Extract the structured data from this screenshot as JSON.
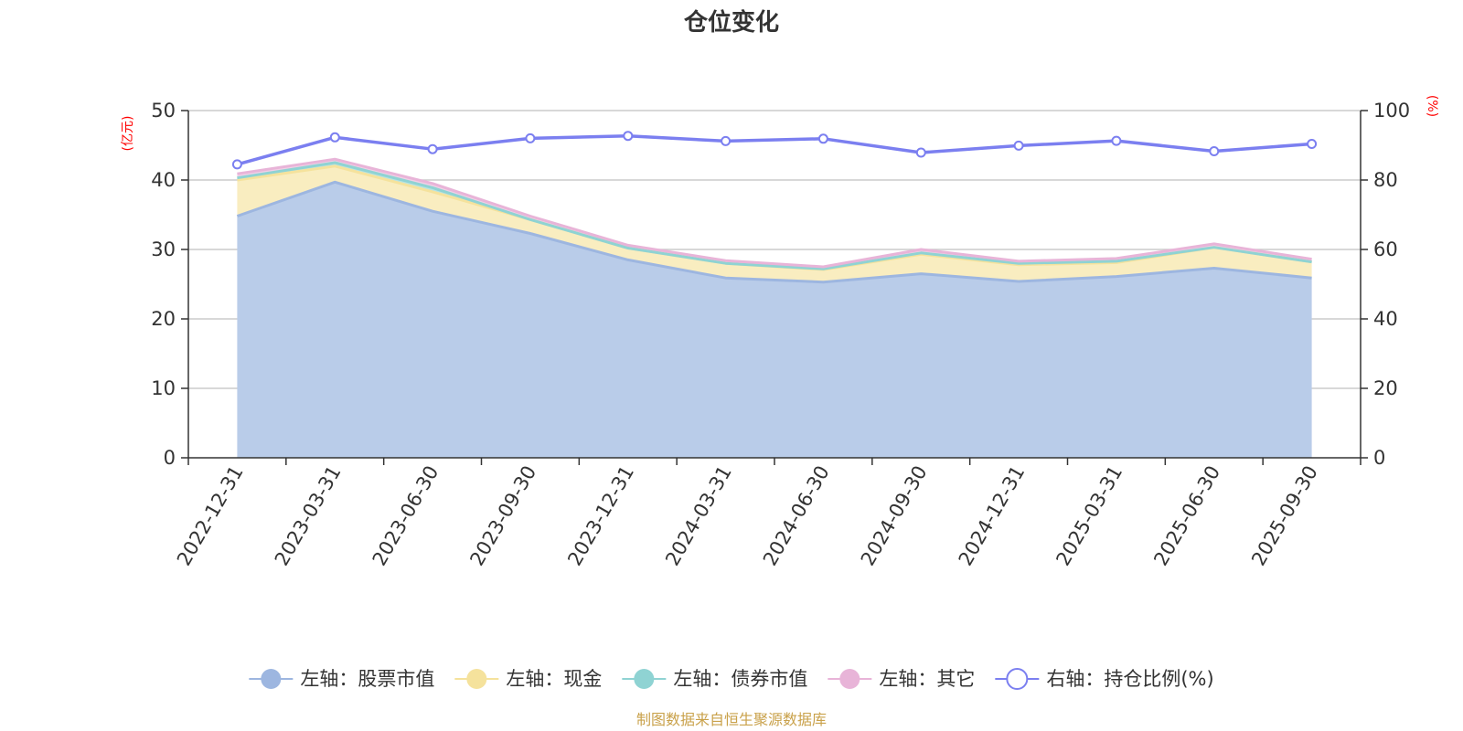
{
  "chart_data": {
    "type": "area",
    "title": "仓位变化",
    "y_left_unit": "(亿元)",
    "y_right_unit": "(%)",
    "y_left_range": [
      0,
      50
    ],
    "y_left_ticks": [
      "0",
      "10",
      "20",
      "30",
      "40",
      "50"
    ],
    "y_right_range": [
      0,
      100
    ],
    "y_right_ticks": [
      "0",
      "20",
      "40",
      "60",
      "80",
      "100"
    ],
    "grid": true,
    "legend_position": "bottom",
    "categories": [
      "2022-12-31",
      "2023-03-31",
      "2023-06-30",
      "2023-09-30",
      "2023-12-31",
      "2024-03-31",
      "2024-06-30",
      "2024-09-30",
      "2024-12-31",
      "2025-03-31",
      "2025-06-30",
      "2025-09-30"
    ],
    "series": [
      {
        "name": "左轴：股票市值",
        "axis": "left",
        "stacked": true,
        "color": "#9db6e0",
        "fill": "#b9cce9",
        "values": [
          34.8,
          39.7,
          35.5,
          32.3,
          28.5,
          25.9,
          25.3,
          26.5,
          25.4,
          26.1,
          27.3,
          25.9
        ]
      },
      {
        "name": "左轴：现金",
        "axis": "left",
        "stacked": true,
        "color": "#f5e29c",
        "fill": "#f9edc0",
        "values": [
          5.2,
          2.3,
          2.8,
          2.0,
          1.7,
          2.1,
          1.8,
          2.8,
          2.4,
          2.0,
          3.0,
          2.3
        ]
      },
      {
        "name": "左轴：债券市值",
        "axis": "left",
        "stacked": true,
        "color": "#8fd3d3",
        "fill": "#b7e4e4",
        "values": [
          0.3,
          0.5,
          0.6,
          0.0,
          0.0,
          0.0,
          0.1,
          0.2,
          0.2,
          0.2,
          0.0,
          0.0
        ]
      },
      {
        "name": "左轴：其它",
        "axis": "left",
        "stacked": true,
        "color": "#e8b4d8",
        "fill": "#f1d0e6",
        "values": [
          0.6,
          0.5,
          0.6,
          0.5,
          0.4,
          0.4,
          0.3,
          0.5,
          0.3,
          0.4,
          0.5,
          0.4
        ]
      },
      {
        "name": "右轴：持仓比例(%)",
        "axis": "right",
        "stacked": false,
        "color": "#7b7ff0",
        "values": [
          84.5,
          92.3,
          88.9,
          92.0,
          92.7,
          91.2,
          91.9,
          87.9,
          89.9,
          91.3,
          88.3,
          90.4
        ]
      }
    ]
  },
  "footer": {
    "source": "制图数据来自恒生聚源数据库"
  }
}
